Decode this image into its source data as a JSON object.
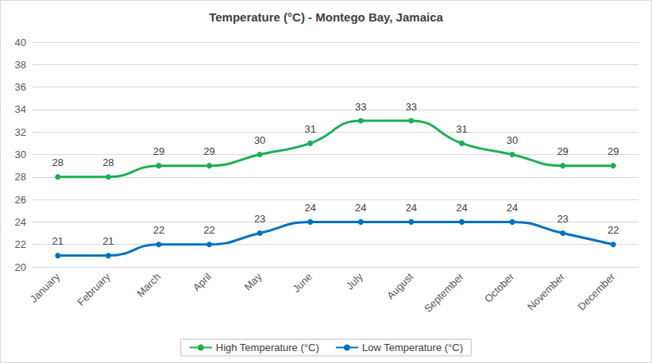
{
  "chart_data": {
    "type": "line",
    "title": "Temperature (°C) - Montego Bay, Jamaica",
    "categories": [
      "January",
      "February",
      "March",
      "April",
      "May",
      "June",
      "July",
      "August",
      "September",
      "October",
      "November",
      "December"
    ],
    "series": [
      {
        "name": "High Temperature (°C)",
        "color": "#1aaf54",
        "marker": "circle",
        "line_style": "solid",
        "values": [
          28,
          28,
          29,
          29,
          30,
          31,
          33,
          33,
          31,
          30,
          29,
          29
        ]
      },
      {
        "name": "Low Temperature (°C)",
        "color": "#0070c0",
        "marker": "circle",
        "line_style": "solid",
        "values": [
          21,
          21,
          22,
          22,
          23,
          24,
          24,
          24,
          24,
          24,
          23,
          22
        ]
      }
    ],
    "ylim": [
      20,
      40
    ],
    "yticks": [
      20,
      22,
      24,
      26,
      28,
      30,
      32,
      34,
      36,
      38,
      40
    ],
    "grid": true,
    "legend": "bottom",
    "data_labels": true
  }
}
